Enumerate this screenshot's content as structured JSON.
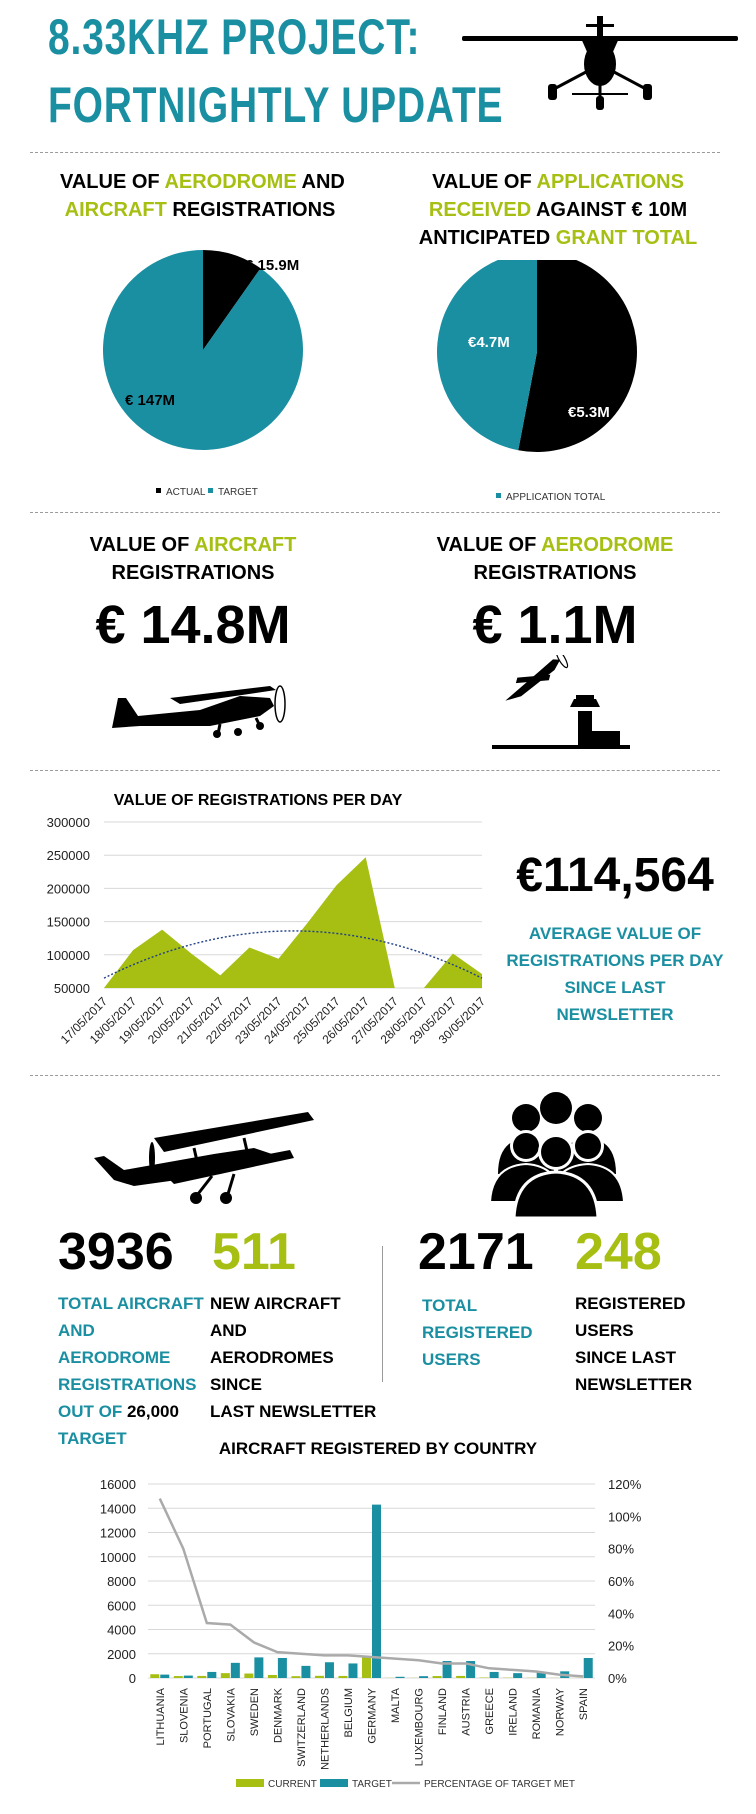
{
  "header": {
    "title_line1": "8.33KHZ PROJECT:",
    "title_line2": "FORTNIGHTLY UPDATE"
  },
  "colors": {
    "teal": "#1a8fa2",
    "green": "#a7bf12",
    "black": "#000000",
    "gray": "#b0b0b0"
  },
  "icons": [
    "airplane-top-icon",
    "airplane-side-icon",
    "aerodrome-icon",
    "biplane-icon",
    "users-group-icon"
  ],
  "section1": {
    "left": {
      "title_parts": [
        "VALUE OF ",
        "AERODROME",
        " AND",
        "AIRCRAFT",
        " REGISTRATIONS"
      ]
    },
    "right": {
      "title_parts": [
        "VALUE OF ",
        "APPLICATIONS",
        "RECEIVED",
        " AGAINST € 10M",
        "ANTICIPATED ",
        "GRANT TOTAL"
      ]
    }
  },
  "section2": {
    "aircraft_title_parts": [
      "VALUE OF ",
      "AIRCRAFT",
      "REGISTRATIONS"
    ],
    "aircraft_value": "€ 14.8M",
    "aerodrome_title_parts": [
      "VALUE OF ",
      "AERODROME",
      "REGISTRATIONS"
    ],
    "aerodrome_value": "€ 1.1M"
  },
  "section3": {
    "average_value": "€114,564",
    "average_label_lines": [
      "AVERAGE VALUE OF",
      "REGISTRATIONS PER DAY",
      "SINCE LAST NEWSLETTER"
    ]
  },
  "section4": {
    "aircraft_total": "3936",
    "aircraft_total_label_lines": [
      "TOTAL AIRCRAFT",
      "AND AERODROME",
      "REGISTRATIONS"
    ],
    "aircraft_total_label_out_of": "OUT OF ",
    "aircraft_total_label_target": "26,000",
    "aircraft_total_label_last": "TARGET",
    "new_aircraft": "511",
    "new_aircraft_label_lines": [
      "NEW AIRCRAFT AND",
      "AERODROMES SINCE",
      "LAST NEWSLETTER"
    ],
    "users_total": "2171",
    "users_total_label_lines": [
      "TOTAL REGISTERED",
      "USERS"
    ],
    "new_users": "248",
    "new_users_label_lines": [
      "REGISTERED USERS",
      "SINCE LAST",
      "NEWSLETTER"
    ]
  },
  "chart_data": [
    {
      "type": "pie",
      "title": "",
      "labels": [
        "ACTUAL",
        "TARGET"
      ],
      "values": [
        15.9,
        147
      ],
      "value_labels": [
        "€ 15.9M",
        "€ 147M"
      ],
      "colors": [
        "#000000",
        "#1a8fa2"
      ],
      "legend": "bottom"
    },
    {
      "type": "pie",
      "title": "",
      "labels": [
        "",
        ""
      ],
      "values": [
        5.3,
        4.7
      ],
      "value_labels": [
        "€5.3M",
        "€4.7M"
      ],
      "colors": [
        "#000000",
        "#1a8fa2"
      ],
      "legend_entries": [
        "APPLICATION TOTAL"
      ],
      "legend": "bottom"
    },
    {
      "type": "area",
      "title": "VALUE OF REGISTRATIONS PER DAY",
      "categories": [
        "17/05/2017",
        "18/05/2017",
        "19/05/2017",
        "20/05/2017",
        "21/05/2017",
        "22/05/2017",
        "23/05/2017",
        "24/05/2017",
        "25/05/2017",
        "26/05/2017",
        "27/05/2017",
        "28/05/2017",
        "29/05/2017",
        "30/05/2017"
      ],
      "values": [
        50000,
        107000,
        138000,
        102000,
        69000,
        111000,
        94000,
        148000,
        205000,
        247000,
        0,
        0,
        102000,
        71000
      ],
      "trendline": "polynomial",
      "ylim": [
        50000,
        300000
      ],
      "yticks": [
        "300000",
        "250000",
        "200000",
        "150000",
        "100000",
        "50000"
      ],
      "grid": true
    },
    {
      "type": "bar",
      "title": "AIRCRAFT REGISTERED BY COUNTRY",
      "categories": [
        "LITHUANIA",
        "SLOVENIA",
        "PORTUGAL",
        "SLOVAKIA",
        "SWEDEN",
        "DENMARK",
        "SWITZERLAND",
        "NETHERLANDS",
        "BELGIUM",
        "GERMANY",
        "MALTA",
        "LUXEMBOURG",
        "FINLAND",
        "AUSTRIA",
        "GREECE",
        "IRELAND",
        "ROMANIA",
        "NORWAY",
        "SPAIN"
      ],
      "series": [
        {
          "name": "CURRENT",
          "values": [
            310,
            160,
            170,
            400,
            370,
            250,
            150,
            180,
            170,
            1800,
            10,
            10,
            160,
            170,
            40,
            25,
            20,
            10,
            10
          ]
        },
        {
          "name": "TARGET",
          "values": [
            280,
            200,
            500,
            1250,
            1700,
            1650,
            1000,
            1300,
            1200,
            14300,
            100,
            150,
            1400,
            1400,
            500,
            400,
            450,
            550,
            1650
          ]
        },
        {
          "name": "PERCENTAGE OF TARGET MET",
          "values": [
            111,
            80,
            34,
            33,
            22,
            16,
            15,
            14,
            14,
            13,
            12,
            11,
            9,
            9,
            6,
            5,
            4,
            2,
            1
          ],
          "axis": "right"
        }
      ],
      "ylim": [
        0,
        16000
      ],
      "yticks": [
        "16000",
        "14000",
        "12000",
        "10000",
        "8000",
        "6000",
        "4000",
        "2000",
        "0"
      ],
      "y2lim": [
        0,
        120
      ],
      "y2ticks": [
        "120%",
        "100%",
        "80%",
        "60%",
        "40%",
        "20%",
        "0%"
      ],
      "legend": "bottom"
    }
  ]
}
